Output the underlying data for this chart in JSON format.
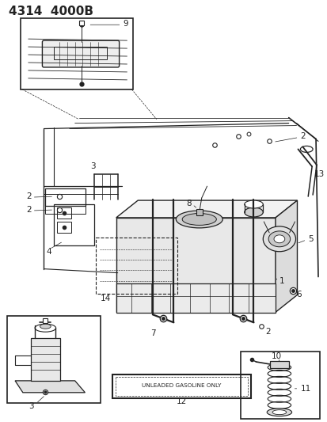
{
  "title": "4314  4000B",
  "bg_color": "#ffffff",
  "line_color": "#222222",
  "figsize": [
    4.14,
    5.33
  ],
  "dpi": 100
}
